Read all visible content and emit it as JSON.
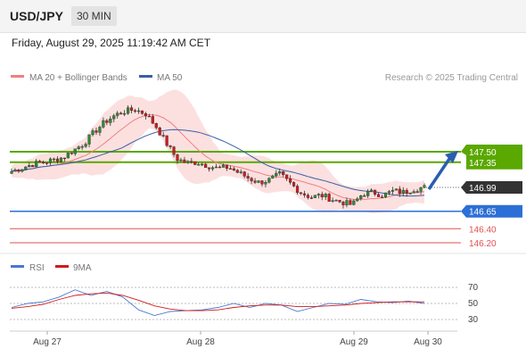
{
  "header": {
    "symbol": "USD/JPY",
    "timeframe": "30 MIN",
    "datetime": "Friday, August 29, 2025 11:19:42 AM CET"
  },
  "legend": {
    "ma20_label": "MA 20 + Bollinger Bands",
    "ma50_label": "MA 50",
    "credit": "Research © 2025 Trading Central",
    "rsi_label": "RSI",
    "rsi_ma_label": "9MA"
  },
  "colors": {
    "candle_up": "#2e8b2e",
    "candle_down": "#d11a1a",
    "ma20": "#f08080",
    "bollinger_fill": "#fcdada",
    "ma50": "#3a5fa8",
    "resistance": "#5aa800",
    "pivot": "#2c6fd6",
    "support": "#e05050",
    "current_tag": "#333333",
    "arrow": "#2a5db0",
    "rsi_line": "#4a78d0",
    "rsi_ma": "#d11a1a"
  },
  "levels": {
    "resistance": [
      {
        "label": "147.50",
        "value": 147.5
      },
      {
        "label": "147.35",
        "value": 147.35
      }
    ],
    "current": {
      "label": "146.99",
      "value": 146.99
    },
    "pivot": {
      "label": "146.65",
      "value": 146.65
    },
    "support": [
      {
        "label": "146.40",
        "value": 146.4
      },
      {
        "label": "146.20",
        "value": 146.2
      }
    ]
  },
  "rsi_axis": {
    "labels": [
      "70",
      "50",
      "30"
    ]
  },
  "x_labels": [
    "Aug 27",
    "Aug 28",
    "Aug 29",
    "Aug 30"
  ],
  "chart_data": {
    "type": "candlestick",
    "title": "USD/JPY",
    "timeframe": "30 MIN",
    "x": [
      "Aug 27",
      "Aug 28",
      "Aug 29",
      "Aug 30"
    ],
    "price_close_path": [
      147.22,
      147.27,
      147.32,
      147.35,
      147.38,
      147.42,
      147.52,
      147.62,
      147.78,
      147.92,
      148.02,
      148.08,
      148.1,
      148.04,
      147.86,
      147.62,
      147.4,
      147.34,
      147.35,
      147.3,
      147.26,
      147.28,
      147.2,
      147.12,
      147.06,
      147.1,
      147.18,
      147.05,
      146.92,
      146.85,
      146.88,
      146.82,
      146.78,
      146.74,
      146.9,
      146.92,
      146.88,
      146.94,
      146.92,
      146.97,
      146.99
    ],
    "rsi": [
      45,
      50,
      52,
      58,
      67,
      60,
      65,
      58,
      42,
      35,
      40,
      41,
      42,
      45,
      50,
      45,
      50,
      48,
      40,
      45,
      50,
      49,
      55,
      52,
      51,
      53,
      50
    ],
    "rsi_ma": [
      44,
      46,
      49,
      55,
      60,
      62,
      63,
      60,
      54,
      47,
      43,
      41,
      41,
      42,
      45,
      47,
      48,
      48,
      46,
      46,
      47,
      48,
      50,
      51,
      52,
      52,
      52
    ],
    "levels": {
      "resistance": [
        147.5,
        147.35
      ],
      "current": 146.99,
      "pivot": 146.65,
      "support": [
        146.4,
        146.2
      ]
    },
    "indicators": [
      "MA 20 + Bollinger Bands",
      "MA 50",
      "RSI",
      "9MA"
    ],
    "rsi_levels": [
      70,
      50,
      30
    ]
  }
}
